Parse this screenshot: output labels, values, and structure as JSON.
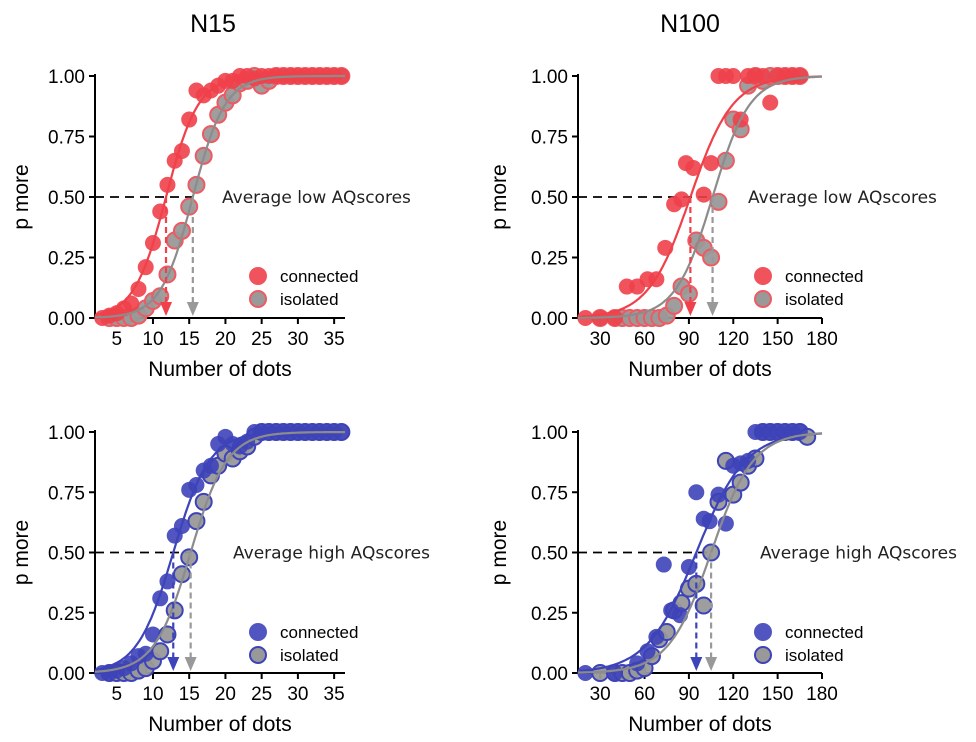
{
  "column_titles": [
    "N15",
    "N100"
  ],
  "colors": {
    "connected_red": "#f0404a",
    "isolated_red_edge": "#ee5a62",
    "connected_blue": "#3d43b8",
    "isolated_blue_edge": "#3d43b8",
    "isolated_fill": "#999999",
    "isolated_curve": "#8c8c8c"
  },
  "chart_data": [
    {
      "type": "scatter",
      "panel": "N15 low",
      "title": "",
      "annotation": "Average low AQscores",
      "xlabel": "Number of dots",
      "ylabel": "p more",
      "xlim": [
        2,
        36.5
      ],
      "ylim": [
        0,
        1
      ],
      "xticks": [
        5,
        10,
        15,
        20,
        25,
        30,
        35
      ],
      "xtick_labels": [
        "5",
        "10",
        "15",
        "20",
        "25",
        "30",
        "35"
      ],
      "yticks": [
        0,
        0.25,
        0.5,
        0.75,
        1
      ],
      "ytick_labels": [
        "0.00",
        "0.25",
        "0.50",
        "0.75",
        "1.00"
      ],
      "legend_position": "bottom-right",
      "threshold_y": 0.5,
      "series": [
        {
          "name": "connected",
          "color": "#f0404a",
          "x": [
            3,
            4,
            5,
            6,
            7,
            8,
            9,
            10,
            11,
            12,
            13,
            14,
            15,
            16,
            17,
            18,
            19,
            20,
            21,
            22,
            23,
            24,
            25,
            26,
            27,
            28,
            29,
            30,
            31,
            32,
            33,
            34,
            35,
            36
          ],
          "y": [
            0,
            0.01,
            0.02,
            0.04,
            0.06,
            0.12,
            0.21,
            0.31,
            0.44,
            0.55,
            0.65,
            0.69,
            0.82,
            0.94,
            0.92,
            0.94,
            0.96,
            0.98,
            0.98,
            1,
            1,
            0.99,
            1,
            1,
            1,
            1,
            1,
            1,
            1,
            1,
            1,
            1,
            1,
            1
          ],
          "curve": {
            "midpoint": 11.8,
            "slope": 0.45
          },
          "threshold_x": 11.8
        },
        {
          "name": "isolated",
          "color": "#999999",
          "x": [
            4,
            5,
            6,
            7,
            8,
            9,
            10,
            11,
            12,
            13,
            14,
            15,
            16,
            17,
            18,
            19,
            20,
            21,
            22,
            23,
            24,
            25,
            26,
            27,
            28,
            29,
            30,
            31,
            32,
            33,
            34,
            35,
            36
          ],
          "y": [
            0,
            0,
            0,
            0,
            0.01,
            0.04,
            0.07,
            0.09,
            0.18,
            0.32,
            0.36,
            0.46,
            0.55,
            0.67,
            0.76,
            0.84,
            0.89,
            0.92,
            0.97,
            0.98,
            1,
            0.96,
            0.98,
            1,
            1,
            1,
            1,
            1,
            1,
            1,
            1,
            1,
            1
          ],
          "curve": {
            "midpoint": 15.5,
            "slope": 0.45
          },
          "threshold_x": 15.5
        }
      ]
    },
    {
      "type": "scatter",
      "panel": "N100 low",
      "title": "",
      "annotation": "Average low AQscores",
      "xlabel": "Number of dots",
      "ylabel": "p more",
      "xlim": [
        15,
        180
      ],
      "ylim": [
        0,
        1
      ],
      "xticks": [
        30,
        60,
        90,
        120,
        150,
        180
      ],
      "xtick_labels": [
        "30",
        "60",
        "90",
        "120",
        "150",
        "180"
      ],
      "yticks": [
        0,
        0.25,
        0.5,
        0.75,
        1
      ],
      "ytick_labels": [
        "0.00",
        "0.25",
        "0.50",
        "0.75",
        "1.00"
      ],
      "legend_position": "bottom-right",
      "threshold_y": 0.5,
      "series": [
        {
          "name": "connected",
          "color": "#f0404a",
          "x": [
            20,
            30,
            40,
            48,
            55,
            62,
            68,
            74,
            80,
            85,
            88,
            93,
            100,
            105,
            110,
            115,
            120,
            125,
            130,
            135,
            140,
            145,
            150,
            155,
            160,
            165
          ],
          "y": [
            0,
            0,
            0,
            0.13,
            0.13,
            0.16,
            0.16,
            0.29,
            0.47,
            0.49,
            0.64,
            0.62,
            0.51,
            0.64,
            1,
            1,
            1,
            0.82,
            1,
            1,
            1,
            0.89,
            1,
            1,
            1,
            1
          ],
          "curve": {
            "midpoint": 91,
            "slope": 0.07
          },
          "threshold_x": 91
        },
        {
          "name": "isolated",
          "color": "#999999",
          "x": [
            30,
            40,
            45,
            50,
            55,
            60,
            65,
            70,
            75,
            80,
            85,
            90,
            95,
            100,
            105,
            110,
            115,
            120,
            125,
            130,
            135,
            140,
            145,
            150,
            155,
            160,
            165
          ],
          "y": [
            0,
            0,
            0,
            0,
            0,
            0,
            0,
            0,
            0.01,
            0.05,
            0.13,
            0.1,
            0.32,
            0.29,
            0.25,
            0.48,
            0.65,
            0.82,
            0.78,
            0.96,
            1,
            0.98,
            1,
            1,
            1,
            1,
            1
          ],
          "curve": {
            "midpoint": 106,
            "slope": 0.08
          },
          "threshold_x": 106
        }
      ]
    },
    {
      "type": "scatter",
      "panel": "N15 high",
      "title": "",
      "annotation": "Average high AQscores",
      "xlabel": "Number of dots",
      "ylabel": "p more",
      "xlim": [
        2,
        36.5
      ],
      "ylim": [
        0,
        1
      ],
      "xticks": [
        5,
        10,
        15,
        20,
        25,
        30,
        35
      ],
      "xtick_labels": [
        "5",
        "10",
        "15",
        "20",
        "25",
        "30",
        "35"
      ],
      "yticks": [
        0,
        0.25,
        0.5,
        0.75,
        1
      ],
      "ytick_labels": [
        "0.00",
        "0.25",
        "0.50",
        "0.75",
        "1.00"
      ],
      "legend_position": "bottom-right",
      "threshold_y": 0.5,
      "series": [
        {
          "name": "connected",
          "color": "#3d43b8",
          "x": [
            3,
            4,
            5,
            6,
            7,
            8,
            9,
            10,
            11,
            12,
            13,
            14,
            15,
            16,
            17,
            18,
            19,
            20,
            21,
            22,
            23,
            24,
            25,
            26,
            27,
            28,
            29,
            30,
            31,
            32,
            33,
            34,
            35,
            36
          ],
          "y": [
            0,
            0,
            0.01,
            0.02,
            0.04,
            0.07,
            0.08,
            0.16,
            0.31,
            0.38,
            0.57,
            0.61,
            0.76,
            0.78,
            0.84,
            0.86,
            0.95,
            0.98,
            0.95,
            0.94,
            0.96,
            1,
            1,
            1,
            1,
            1,
            1,
            1,
            1,
            1,
            1,
            1,
            1,
            1
          ],
          "curve": {
            "midpoint": 12.8,
            "slope": 0.4
          },
          "threshold_x": 12.8
        },
        {
          "name": "isolated",
          "color": "#999999",
          "x": [
            4,
            5,
            6,
            7,
            8,
            9,
            10,
            11,
            12,
            13,
            14,
            15,
            16,
            17,
            18,
            19,
            20,
            21,
            22,
            23,
            24,
            25,
            26,
            27,
            28,
            29,
            30,
            31,
            32,
            33,
            34,
            35,
            36
          ],
          "y": [
            0,
            0,
            0,
            0,
            0.01,
            0.02,
            0.05,
            0.09,
            0.16,
            0.26,
            0.41,
            0.48,
            0.63,
            0.71,
            0.82,
            0.86,
            0.91,
            0.89,
            0.92,
            0.94,
            0.98,
            1,
            1,
            1,
            1,
            1,
            1,
            1,
            1,
            1,
            1,
            1,
            1
          ],
          "curve": {
            "midpoint": 15.2,
            "slope": 0.4
          },
          "threshold_x": 15.2
        }
      ]
    },
    {
      "type": "scatter",
      "panel": "N100 high",
      "title": "",
      "annotation": "Average high AQscores",
      "xlabel": "Number of dots",
      "ylabel": "p more",
      "xlim": [
        15,
        180
      ],
      "ylim": [
        0,
        1
      ],
      "xticks": [
        30,
        60,
        90,
        120,
        150,
        180
      ],
      "xtick_labels": [
        "30",
        "60",
        "90",
        "120",
        "150",
        "180"
      ],
      "yticks": [
        0,
        0.25,
        0.5,
        0.75,
        1
      ],
      "ytick_labels": [
        "0.00",
        "0.25",
        "0.50",
        "0.75",
        "1.00"
      ],
      "legend_position": "bottom-right",
      "threshold_y": 0.5,
      "series": [
        {
          "name": "connected",
          "color": "#3d43b8",
          "x": [
            20,
            40,
            55,
            62,
            68,
            73,
            78,
            84,
            90,
            95,
            100,
            104,
            110,
            115,
            120,
            125,
            130,
            135,
            140,
            145,
            150,
            155,
            160,
            165
          ],
          "y": [
            0,
            0,
            0.04,
            0.09,
            0.15,
            0.45,
            0.26,
            0.24,
            0.44,
            0.75,
            0.64,
            0.63,
            0.74,
            0.62,
            0.86,
            0.87,
            0.88,
            1,
            1,
            1,
            1,
            1,
            1,
            1
          ],
          "curve": {
            "midpoint": 95,
            "slope": 0.06
          },
          "threshold_x": 95
        },
        {
          "name": "isolated",
          "color": "#999999",
          "x": [
            30,
            40,
            45,
            50,
            55,
            60,
            65,
            70,
            75,
            80,
            85,
            90,
            95,
            100,
            105,
            110,
            115,
            120,
            125,
            130,
            135,
            140,
            145,
            150,
            155,
            160,
            165,
            170
          ],
          "y": [
            0,
            0,
            0,
            0,
            0.01,
            0.02,
            0.07,
            0.14,
            0.17,
            0.26,
            0.29,
            0.35,
            0.37,
            0.28,
            0.5,
            0.71,
            0.88,
            0.74,
            0.79,
            0.86,
            0.89,
            1,
            1,
            1,
            1,
            1,
            1,
            0.98
          ],
          "curve": {
            "midpoint": 105,
            "slope": 0.07
          },
          "threshold_x": 105
        }
      ]
    }
  ]
}
